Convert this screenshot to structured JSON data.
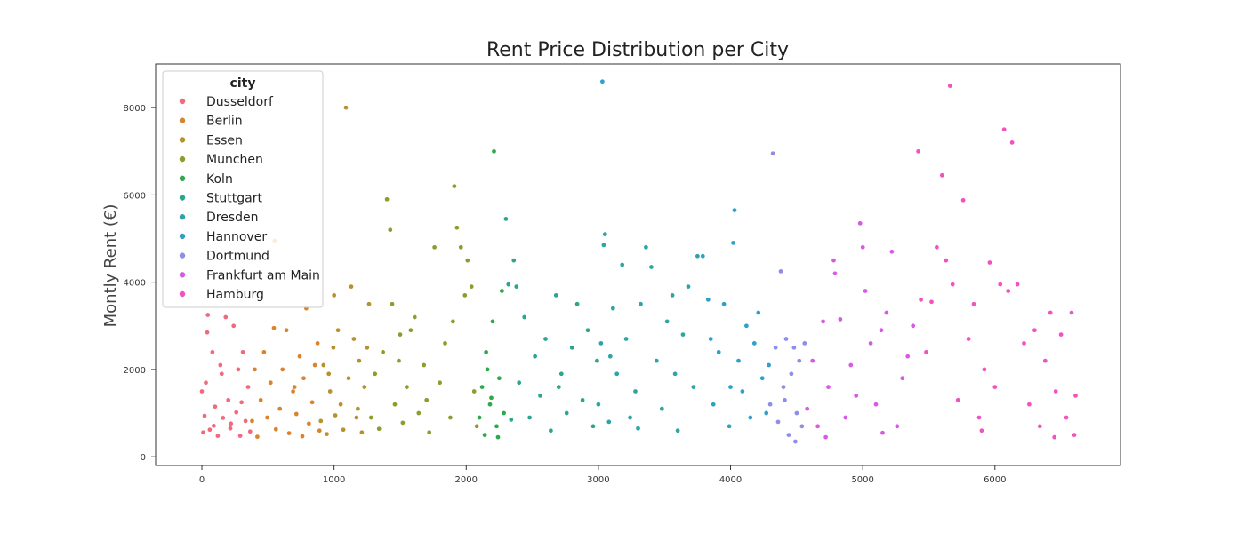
{
  "chart_data": {
    "type": "scatter",
    "title": "Rent Price Distribution per City",
    "xlabel": "",
    "ylabel": "Montly Rent (€)",
    "xlim": [
      -350,
      6950
    ],
    "ylim": [
      -200,
      9000
    ],
    "xticks": [
      0,
      1000,
      2000,
      3000,
      4000,
      5000,
      6000
    ],
    "yticks": [
      0,
      2000,
      4000,
      6000,
      8000
    ],
    "grid": false,
    "legend": {
      "title": "city",
      "placement": "top-left"
    },
    "series": [
      {
        "name": "Dusseldorf",
        "color": "#f0697d",
        "points": [
          [
            0,
            1500
          ],
          [
            10,
            560
          ],
          [
            20,
            940
          ],
          [
            30,
            1700
          ],
          [
            45,
            3250
          ],
          [
            60,
            620
          ],
          [
            80,
            2400
          ],
          [
            100,
            1150
          ],
          [
            120,
            480
          ],
          [
            140,
            2100
          ],
          [
            160,
            890
          ],
          [
            180,
            3200
          ],
          [
            200,
            1300
          ],
          [
            215,
            650
          ],
          [
            240,
            3000
          ],
          [
            260,
            1020
          ],
          [
            275,
            2000
          ],
          [
            290,
            480
          ],
          [
            310,
            2400
          ],
          [
            330,
            820
          ],
          [
            350,
            1600
          ],
          [
            365,
            580
          ],
          [
            40,
            2850
          ],
          [
            90,
            710
          ],
          [
            150,
            1900
          ],
          [
            220,
            760
          ],
          [
            300,
            1250
          ]
        ]
      },
      {
        "name": "Berlin",
        "color": "#d9832e",
        "points": [
          [
            380,
            820
          ],
          [
            400,
            2000
          ],
          [
            420,
            460
          ],
          [
            445,
            1300
          ],
          [
            470,
            2400
          ],
          [
            495,
            900
          ],
          [
            520,
            1700
          ],
          [
            545,
            2950
          ],
          [
            560,
            630
          ],
          [
            590,
            1100
          ],
          [
            610,
            2000
          ],
          [
            640,
            2900
          ],
          [
            660,
            540
          ],
          [
            690,
            1500
          ],
          [
            715,
            980
          ],
          [
            740,
            2300
          ],
          [
            770,
            1800
          ],
          [
            790,
            3400
          ],
          [
            810,
            760
          ],
          [
            835,
            1250
          ],
          [
            855,
            2100
          ],
          [
            875,
            2600
          ],
          [
            890,
            600
          ],
          [
            550,
            4950
          ],
          [
            700,
            1600
          ],
          [
            760,
            470
          ]
        ]
      },
      {
        "name": "Essen",
        "color": "#b6922c",
        "points": [
          [
            900,
            820
          ],
          [
            920,
            2100
          ],
          [
            945,
            520
          ],
          [
            970,
            1500
          ],
          [
            995,
            2500
          ],
          [
            1010,
            950
          ],
          [
            1030,
            2900
          ],
          [
            1050,
            1200
          ],
          [
            1070,
            620
          ],
          [
            1090,
            8000
          ],
          [
            1110,
            1800
          ],
          [
            1130,
            3900
          ],
          [
            1150,
            2700
          ],
          [
            1170,
            900
          ],
          [
            1190,
            2200
          ],
          [
            1210,
            560
          ],
          [
            1230,
            1600
          ],
          [
            1250,
            2500
          ],
          [
            1265,
            3500
          ],
          [
            1000,
            3700
          ],
          [
            1180,
            1100
          ],
          [
            960,
            1900
          ]
        ]
      },
      {
        "name": "Munchen",
        "color": "#8e9c2b",
        "points": [
          [
            1280,
            900
          ],
          [
            1310,
            1900
          ],
          [
            1340,
            640
          ],
          [
            1370,
            2400
          ],
          [
            1400,
            5900
          ],
          [
            1425,
            5200
          ],
          [
            1440,
            3500
          ],
          [
            1460,
            1200
          ],
          [
            1490,
            2200
          ],
          [
            1520,
            780
          ],
          [
            1550,
            1600
          ],
          [
            1580,
            2900
          ],
          [
            1610,
            3200
          ],
          [
            1640,
            1000
          ],
          [
            1680,
            2100
          ],
          [
            1720,
            560
          ],
          [
            1760,
            4800
          ],
          [
            1800,
            1700
          ],
          [
            1840,
            2600
          ],
          [
            1880,
            900
          ],
          [
            1910,
            6200
          ],
          [
            1930,
            5250
          ],
          [
            1960,
            4800
          ],
          [
            1990,
            3700
          ],
          [
            2010,
            4500
          ],
          [
            2040,
            3900
          ],
          [
            2060,
            1500
          ],
          [
            2080,
            700
          ],
          [
            1500,
            2800
          ],
          [
            1700,
            1300
          ],
          [
            1900,
            3100
          ]
        ]
      },
      {
        "name": "Koln",
        "color": "#2fa84b",
        "points": [
          [
            2100,
            900
          ],
          [
            2120,
            1600
          ],
          [
            2140,
            500
          ],
          [
            2160,
            2000
          ],
          [
            2180,
            1200
          ],
          [
            2200,
            3100
          ],
          [
            2210,
            7000
          ],
          [
            2230,
            700
          ],
          [
            2250,
            1800
          ],
          [
            2270,
            3800
          ],
          [
            2285,
            1000
          ],
          [
            2150,
            2400
          ],
          [
            2240,
            450
          ],
          [
            2190,
            1350
          ]
        ]
      },
      {
        "name": "Stuttgart",
        "color": "#2ca58d",
        "points": [
          [
            2300,
            5450
          ],
          [
            2320,
            3950
          ],
          [
            2360,
            4500
          ],
          [
            2380,
            3900
          ],
          [
            2400,
            1700
          ],
          [
            2440,
            3200
          ],
          [
            2480,
            900
          ],
          [
            2520,
            2300
          ],
          [
            2560,
            1400
          ],
          [
            2600,
            2700
          ],
          [
            2640,
            600
          ],
          [
            2680,
            3700
          ],
          [
            2720,
            1900
          ],
          [
            2760,
            1000
          ],
          [
            2800,
            2500
          ],
          [
            2840,
            3500
          ],
          [
            2880,
            1300
          ],
          [
            2920,
            2900
          ],
          [
            2960,
            700
          ],
          [
            2990,
            2200
          ],
          [
            2340,
            850
          ],
          [
            2700,
            1600
          ]
        ]
      },
      {
        "name": "Dresden",
        "color": "#2ea4a4",
        "points": [
          [
            3000,
            1200
          ],
          [
            3020,
            2600
          ],
          [
            3050,
            5100
          ],
          [
            3040,
            4850
          ],
          [
            3080,
            800
          ],
          [
            3110,
            3400
          ],
          [
            3140,
            1900
          ],
          [
            3180,
            4400
          ],
          [
            3210,
            2700
          ],
          [
            3240,
            900
          ],
          [
            3280,
            1500
          ],
          [
            3320,
            3500
          ],
          [
            3360,
            4800
          ],
          [
            3400,
            4350
          ],
          [
            3440,
            2200
          ],
          [
            3480,
            1100
          ],
          [
            3520,
            3100
          ],
          [
            3560,
            3700
          ],
          [
            3600,
            600
          ],
          [
            3640,
            2800
          ],
          [
            3680,
            3900
          ],
          [
            3720,
            1600
          ],
          [
            3750,
            4600
          ],
          [
            3090,
            2300
          ],
          [
            3300,
            650
          ],
          [
            3580,
            1900
          ]
        ]
      },
      {
        "name": "Hannover",
        "color": "#2fa0c8",
        "points": [
          [
            3030,
            8600
          ],
          [
            3790,
            4600
          ],
          [
            3830,
            3600
          ],
          [
            3870,
            1200
          ],
          [
            3910,
            2400
          ],
          [
            3950,
            3500
          ],
          [
            3990,
            700
          ],
          [
            4020,
            4900
          ],
          [
            4030,
            5650
          ],
          [
            4060,
            2200
          ],
          [
            4090,
            1500
          ],
          [
            4120,
            3000
          ],
          [
            4150,
            900
          ],
          [
            4180,
            2600
          ],
          [
            4210,
            3300
          ],
          [
            4240,
            1800
          ],
          [
            4270,
            1000
          ],
          [
            4290,
            2100
          ],
          [
            3850,
            2700
          ],
          [
            4000,
            1600
          ]
        ]
      },
      {
        "name": "Dortmund",
        "color": "#8d8ee6",
        "points": [
          [
            4300,
            1200
          ],
          [
            4320,
            6950
          ],
          [
            4340,
            2500
          ],
          [
            4360,
            800
          ],
          [
            4380,
            4250
          ],
          [
            4400,
            1600
          ],
          [
            4420,
            2700
          ],
          [
            4440,
            500
          ],
          [
            4460,
            1900
          ],
          [
            4480,
            2500
          ],
          [
            4500,
            1000
          ],
          [
            4520,
            2200
          ],
          [
            4540,
            700
          ],
          [
            4560,
            2600
          ],
          [
            4410,
            1300
          ],
          [
            4490,
            350
          ]
        ]
      },
      {
        "name": "Frankfurt am Main",
        "color": "#d65ae3",
        "points": [
          [
            4580,
            1100
          ],
          [
            4620,
            2200
          ],
          [
            4660,
            700
          ],
          [
            4700,
            3100
          ],
          [
            4740,
            1600
          ],
          [
            4780,
            4500
          ],
          [
            4790,
            4200
          ],
          [
            4830,
            3150
          ],
          [
            4870,
            900
          ],
          [
            4910,
            2100
          ],
          [
            4950,
            1400
          ],
          [
            4980,
            5350
          ],
          [
            5000,
            4800
          ],
          [
            5020,
            3800
          ],
          [
            5060,
            2600
          ],
          [
            5100,
            1200
          ],
          [
            5140,
            2900
          ],
          [
            5180,
            3300
          ],
          [
            5220,
            4700
          ],
          [
            5260,
            700
          ],
          [
            5300,
            1800
          ],
          [
            5340,
            2300
          ],
          [
            5380,
            3000
          ],
          [
            4720,
            450
          ],
          [
            5150,
            550
          ]
        ]
      },
      {
        "name": "Hamburg",
        "color": "#f052c2",
        "points": [
          [
            5420,
            7000
          ],
          [
            5440,
            3600
          ],
          [
            5480,
            2400
          ],
          [
            5520,
            3550
          ],
          [
            5560,
            4800
          ],
          [
            5600,
            6450
          ],
          [
            5630,
            4500
          ],
          [
            5660,
            8500
          ],
          [
            5680,
            3950
          ],
          [
            5720,
            1300
          ],
          [
            5760,
            5880
          ],
          [
            5800,
            2700
          ],
          [
            5840,
            3500
          ],
          [
            5880,
            900
          ],
          [
            5920,
            2000
          ],
          [
            5960,
            4450
          ],
          [
            6000,
            1600
          ],
          [
            6040,
            3950
          ],
          [
            6070,
            7500
          ],
          [
            6100,
            3800
          ],
          [
            6130,
            7200
          ],
          [
            6170,
            3950
          ],
          [
            6220,
            2600
          ],
          [
            6260,
            1200
          ],
          [
            6300,
            2900
          ],
          [
            6340,
            700
          ],
          [
            6380,
            2200
          ],
          [
            6420,
            3300
          ],
          [
            6460,
            1500
          ],
          [
            6500,
            2800
          ],
          [
            6540,
            900
          ],
          [
            6580,
            3300
          ],
          [
            6610,
            1400
          ],
          [
            6600,
            500
          ],
          [
            5900,
            600
          ],
          [
            6450,
            450
          ]
        ]
      }
    ]
  }
}
